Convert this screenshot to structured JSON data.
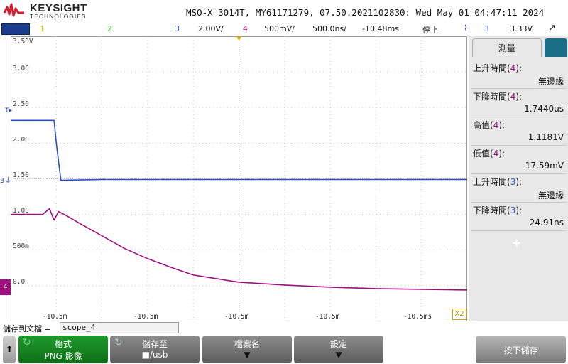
{
  "brand": {
    "name": "KEYSIGHT",
    "sub": "TECHNOLOGIES"
  },
  "title_bar": "MSO-X 3014T, MY61171279, 07.50.2021102830: Wed May 01 04:47:11 2024",
  "channels": {
    "ch1": {
      "num": "1",
      "color": "#d6c200"
    },
    "ch2": {
      "num": "2",
      "color": "#3cbf2c"
    },
    "ch3": {
      "num": "3",
      "scale": "2.00V/",
      "color": "#2a4fc6"
    },
    "ch4": {
      "num": "4",
      "scale": "500mV/",
      "color": "#a0107e"
    }
  },
  "timebase": "500.0ns/",
  "delay": "-10.48ms",
  "run_state": "停止",
  "trigger": {
    "icon": "falling-edge-icon",
    "channel": "3",
    "level": "3.33V",
    "mode_icon": "trigger-mode-icon"
  },
  "y_labels": [
    "3.50V",
    "3.00",
    "2.50",
    "2.00",
    "1.50",
    "1.00",
    "500m",
    "0.0"
  ],
  "x_labels": [
    "-10.5m",
    "-10.5m",
    "-10.5m",
    "-10.5m",
    "-10.5ms"
  ],
  "markers": {
    "ch4": "4",
    "ch3": "3",
    "trigger": "T",
    "zoom": "X2"
  },
  "panel": {
    "tab_label": "測量",
    "measurements": [
      {
        "label": "上升時間",
        "ch": "4",
        "value": "無邊緣"
      },
      {
        "label": "下降時間",
        "ch": "4",
        "value": "1.7440us"
      },
      {
        "label": "高值",
        "ch": "4",
        "value": "1.1181V"
      },
      {
        "label": "低值",
        "ch": "4",
        "value": "-17.59mV"
      },
      {
        "label": "上升時間",
        "ch": "3",
        "value": "無邊緣"
      },
      {
        "label": "下降時間",
        "ch": "3",
        "value": "24.91ns"
      }
    ],
    "add": "+"
  },
  "save": {
    "label": "儲存到文檔 =",
    "file_name": "scope_4"
  },
  "softkeys": {
    "back": "⬆",
    "format": {
      "title": "格式",
      "sub": "PNG 影像"
    },
    "save_to": {
      "title": "儲存至",
      "sub": "■/usb"
    },
    "file_name": {
      "title": "檔案名"
    },
    "settings": {
      "title": "設定"
    },
    "press_to_save": {
      "title": "按下儲存"
    }
  },
  "chart_data": {
    "type": "line",
    "x_unit": "time",
    "y_unit": "V",
    "ylim": [
      -0.5,
      3.5
    ],
    "series": [
      {
        "name": "",
        "color": "#2a4fc6",
        "points_x_div": [
          0,
          0.95,
          1.0,
          1.1,
          2,
          4,
          6,
          8,
          10
        ],
        "points_y": [
          2.32,
          2.32,
          2.0,
          1.48,
          1.49,
          1.49,
          1.49,
          1.49,
          1.49
        ]
      },
      {
        "name": "",
        "color": "#a0107e",
        "points_x_div": [
          0,
          0.7,
          0.85,
          0.95,
          1.05,
          1.2,
          1.5,
          2,
          2.5,
          3,
          3.5,
          4,
          5,
          6,
          7,
          8,
          9,
          10
        ],
        "points_y": [
          1.0,
          1.0,
          1.08,
          0.92,
          1.04,
          0.99,
          0.88,
          0.7,
          0.52,
          0.38,
          0.26,
          0.15,
          0.05,
          0.01,
          -0.02,
          -0.04,
          -0.05,
          -0.06
        ]
      }
    ]
  }
}
